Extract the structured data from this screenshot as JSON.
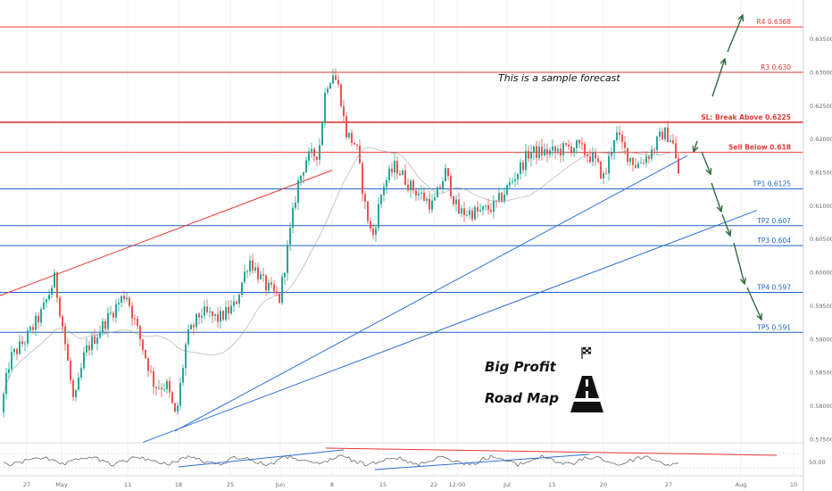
{
  "chart_data": {
    "type": "candlestick",
    "title": "",
    "annotation": "This is a sample forecast",
    "caption_lines": [
      "Big Profit",
      "Road Map"
    ],
    "ylim": [
      0.5735,
      0.6395
    ],
    "x_tick_labels": [
      "27",
      "May",
      "11",
      "18",
      "25",
      "Jun",
      "8",
      "15",
      "22",
      "12:00",
      "Jul",
      "13",
      "20",
      "27",
      "Aug",
      "10"
    ],
    "y_tick_labels": [
      "0.63500",
      "0.63000",
      "0.62500",
      "0.62000",
      "0.61500",
      "0.61000",
      "0.60500",
      "0.60000",
      "0.59500",
      "0.59000",
      "0.58500",
      "0.58000",
      "0.57500"
    ],
    "oscillator_label": "50.00",
    "levels": [
      {
        "label": "R4 0.6368",
        "value": 0.6368,
        "color": "#e53935"
      },
      {
        "label": "R3 0.630",
        "value": 0.63,
        "color": "#e53935"
      },
      {
        "label": "SL: Break Above 0.6225",
        "value": 0.6225,
        "color": "#e53935"
      },
      {
        "label": "Sell Below 0.618",
        "value": 0.618,
        "color": "#e53935"
      },
      {
        "label": "TP1 0.6125",
        "value": 0.6125,
        "color": "#1e63c8"
      },
      {
        "label": "TP2 0.607",
        "value": 0.607,
        "color": "#1e63c8"
      },
      {
        "label": "TP3 0.604",
        "value": 0.604,
        "color": "#1e63c8"
      },
      {
        "label": "TP4 0.597",
        "value": 0.597,
        "color": "#1e63c8"
      },
      {
        "label": "TP5 0.591",
        "value": 0.591,
        "color": "#1e63c8"
      }
    ],
    "up_color": "#26a69a",
    "down_color": "#ef5350"
  },
  "icons": [
    "checkered-flag-icon",
    "road-icon"
  ]
}
